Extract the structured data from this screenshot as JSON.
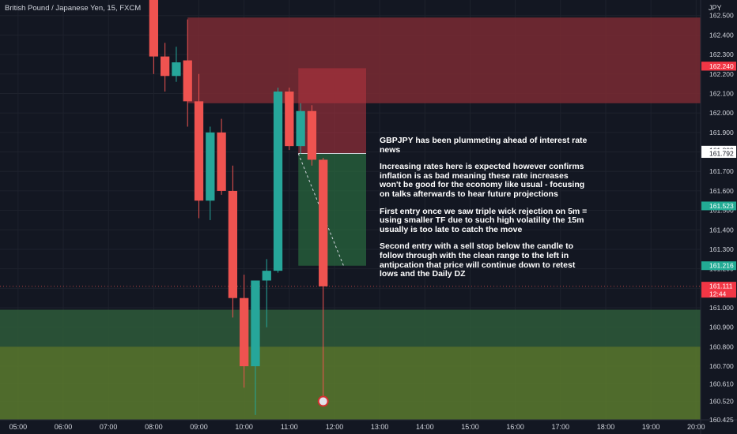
{
  "header": {
    "title": "British Pound / Japanese Yen, 15, FXCM"
  },
  "axis": {
    "currency": "JPY"
  },
  "annotation": {
    "paragraphs": [
      "GBPJPY has been plummeting ahead of interest rate news",
      "Increasing rates here is expected however confirms inflation is as bad meaning these rate increases won't be good for the economy like usual - focusing on talks afterwards to hear future projections",
      "First entry once we saw triple wick rejection on 5m = using smaller TF due to such high volatility the 15m usually is too late to catch the move",
      "Second entry with a sell stop below the candle to follow through with the clean range to the left in antipcation that price will continue down to retest lows and the Daily DZ"
    ]
  },
  "colors": {
    "background": "#131722",
    "bull": "#26a69a",
    "bear": "#ef5350",
    "supply_zone": "#7a2a33",
    "demand_zone_dark": "#2e5a3a",
    "demand_zone_olive": "#5a7a2e",
    "text": "#d1d4dc",
    "grid": "#1e222d"
  },
  "chart_data": {
    "type": "candlestick",
    "title": "British Pound / Japanese Yen, 15, FXCM",
    "timeframe": "15",
    "ylim": [
      160.425,
      162.58
    ],
    "y_ticks": [
      162.5,
      162.4,
      162.3,
      162.2,
      162.1,
      162.0,
      161.9,
      161.8,
      161.7,
      161.6,
      161.5,
      161.4,
      161.3,
      161.2,
      161.1,
      161.0,
      160.9,
      160.8,
      160.7,
      160.61,
      160.52,
      160.425
    ],
    "y_tick_labels": [
      "162.500",
      "162.400",
      "162.300",
      "162.200",
      "162.100",
      "162.000",
      "161.900",
      "161.800",
      "161.700",
      "161.600",
      "161.500",
      "161.400",
      "161.300",
      "161.200",
      "161.100",
      "161.000",
      "160.900",
      "160.800",
      "160.700",
      "160.610",
      "160.520",
      "160.425"
    ],
    "x_ticks": [
      "05:00",
      "06:00",
      "07:00",
      "08:00",
      "09:00",
      "10:00",
      "11:00",
      "12:00",
      "13:00",
      "14:00",
      "15:00",
      "16:00",
      "17:00",
      "18:00",
      "19:00",
      "20:00"
    ],
    "x_range_hours": [
      4.6,
      20.1
    ],
    "candles": [
      {
        "t": 8.0,
        "o": 162.65,
        "h": 162.65,
        "l": 162.2,
        "c": 162.29
      },
      {
        "t": 8.25,
        "o": 162.29,
        "h": 162.36,
        "l": 162.11,
        "c": 162.19
      },
      {
        "t": 8.5,
        "o": 162.19,
        "h": 162.34,
        "l": 162.16,
        "c": 162.26
      },
      {
        "t": 8.75,
        "o": 162.27,
        "h": 162.48,
        "l": 161.93,
        "c": 162.06
      },
      {
        "t": 9.0,
        "o": 162.06,
        "h": 162.2,
        "l": 161.46,
        "c": 161.55
      },
      {
        "t": 9.25,
        "o": 161.55,
        "h": 161.93,
        "l": 161.45,
        "c": 161.9
      },
      {
        "t": 9.5,
        "o": 161.9,
        "h": 161.97,
        "l": 161.58,
        "c": 161.6
      },
      {
        "t": 9.75,
        "o": 161.6,
        "h": 161.73,
        "l": 160.95,
        "c": 161.05
      },
      {
        "t": 10.0,
        "o": 161.05,
        "h": 161.17,
        "l": 160.59,
        "c": 160.7
      },
      {
        "t": 10.25,
        "o": 160.7,
        "h": 161.14,
        "l": 160.45,
        "c": 161.14
      },
      {
        "t": 10.5,
        "o": 161.14,
        "h": 161.25,
        "l": 160.9,
        "c": 161.19
      },
      {
        "t": 10.75,
        "o": 161.19,
        "h": 162.13,
        "l": 161.18,
        "c": 162.11
      },
      {
        "t": 11.0,
        "o": 162.11,
        "h": 162.13,
        "l": 161.81,
        "c": 161.83
      },
      {
        "t": 11.25,
        "o": 161.83,
        "h": 162.05,
        "l": 161.79,
        "c": 162.01
      },
      {
        "t": 11.5,
        "o": 162.01,
        "h": 162.04,
        "l": 161.73,
        "c": 161.76
      },
      {
        "t": 11.75,
        "o": 161.76,
        "h": 161.77,
        "l": 160.52,
        "c": 161.11
      }
    ],
    "zones": [
      {
        "name": "",
        "y1": 162.05,
        "y2": 162.49,
        "x_start": 8.75,
        "color": "#7a2a33"
      },
      {
        "name": "",
        "y1": 160.8,
        "y2": 160.99,
        "x_start": 4.6,
        "color": "#2e5a3a"
      },
      {
        "name": "",
        "y1": 160.425,
        "y2": 160.8,
        "x_start": 4.6,
        "color": "#5a7a2e"
      }
    ],
    "positions": [
      {
        "entry": 161.792,
        "stop": 162.23,
        "target": 161.216,
        "x1": 11.2,
        "x2": 12.7
      }
    ],
    "price_labels": [
      {
        "value": "162.241",
        "color": "#f23645"
      },
      {
        "value": "162.240",
        "color": "#f23645"
      },
      {
        "value": "161.809",
        "color": "#ffffff"
      },
      {
        "value": "161.792",
        "color": "#ffffff"
      },
      {
        "value": "161.523",
        "color": "#22ab94"
      },
      {
        "value": "161.216",
        "color": "#22ab94"
      },
      {
        "value": "161.111",
        "color": "#f23645",
        "sub": "12:44"
      }
    ]
  }
}
